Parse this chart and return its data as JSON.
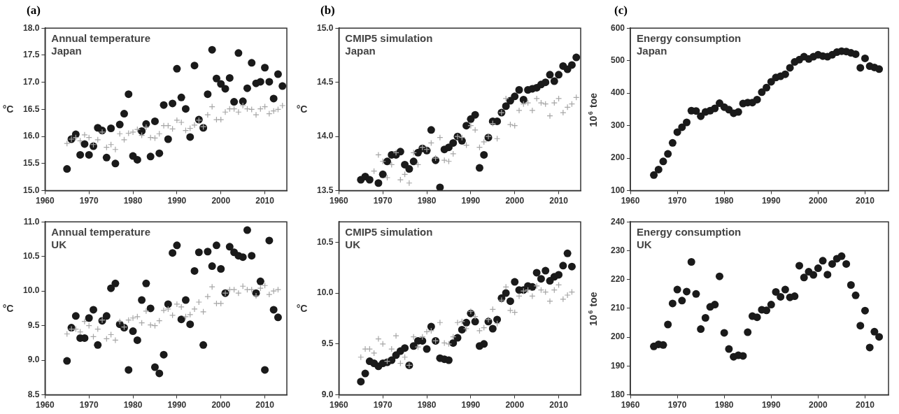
{
  "chart_data": [
    {
      "type": "scatter",
      "title": "Annual temperature",
      "subtitle": "Japan",
      "ylabel": "°C",
      "annotations": [
        "(a)"
      ],
      "x": [
        1965,
        1966,
        1967,
        1968,
        1969,
        1970,
        1971,
        1972,
        1973,
        1974,
        1975,
        1976,
        1977,
        1978,
        1979,
        1980,
        1981,
        1982,
        1983,
        1984,
        1985,
        1986,
        1987,
        1988,
        1989,
        1990,
        1991,
        1992,
        1993,
        1994,
        1995,
        1996,
        1997,
        1998,
        1999,
        2000,
        2001,
        2002,
        2003,
        2004,
        2005,
        2006,
        2007,
        2008,
        2009,
        2010,
        2011,
        2012,
        2013,
        2014
      ],
      "series": [
        {
          "color": "#1a1a1a",
          "marker": "circle",
          "values": [
            15.4,
            15.95,
            16.04,
            15.66,
            15.86,
            15.66,
            15.82,
            16.16,
            16.11,
            15.61,
            16.15,
            15.5,
            16.22,
            16.42,
            16.78,
            15.64,
            15.57,
            16.1,
            16.23,
            15.63,
            16.28,
            15.69,
            16.58,
            15.95,
            16.61,
            17.25,
            16.72,
            16.51,
            15.99,
            17.31,
            16.31,
            16.16,
            16.78,
            17.6,
            17.07,
            16.97,
            16.88,
            17.08,
            16.64,
            17.54,
            16.65,
            16.89,
            17.36,
            16.98,
            17.01,
            17.27,
            17.01,
            16.7,
            17.15,
            16.93
          ]
        },
        {
          "color": "#a6a6a6",
          "marker": "cross",
          "values": [
            15.87,
            15.95,
            15.98,
            15.92,
            16.03,
            15.98,
            15.85,
            15.94,
            16.08,
            15.8,
            15.85,
            15.76,
            16.05,
            15.94,
            16.06,
            16.08,
            16.13,
            16.02,
            16.17,
            15.98,
            15.97,
            16.05,
            16.2,
            16.2,
            16.14,
            16.3,
            16.26,
            16.11,
            16.15,
            16.21,
            16.3,
            16.18,
            16.4,
            16.55,
            16.31,
            16.31,
            16.45,
            16.51,
            16.51,
            16.45,
            16.57,
            16.51,
            16.5,
            16.4,
            16.51,
            16.55,
            16.42,
            16.47,
            16.5,
            16.57
          ]
        }
      ],
      "xlim": [
        1960,
        2015
      ],
      "xticks": [
        1960,
        1970,
        1980,
        1990,
        2000,
        2010
      ],
      "ylim": [
        15,
        18
      ],
      "yticks": [
        {
          "value": 15,
          "label": "15.0"
        },
        {
          "value": 15.5,
          "label": "15.5"
        },
        {
          "value": 16,
          "label": "16.0"
        },
        {
          "value": 16.5,
          "label": "16.5"
        },
        {
          "value": 17,
          "label": "17.0"
        },
        {
          "value": 17.5,
          "label": "17.5"
        },
        {
          "value": 18,
          "label": "18.0"
        }
      ]
    },
    {
      "type": "scatter",
      "title": "CMIP5 simulation",
      "subtitle": "Japan",
      "ylabel": "°C",
      "annotations": [
        "(b)"
      ],
      "x": [
        1965,
        1966,
        1967,
        1968,
        1969,
        1970,
        1971,
        1972,
        1973,
        1974,
        1975,
        1976,
        1977,
        1978,
        1979,
        1980,
        1981,
        1982,
        1983,
        1984,
        1985,
        1986,
        1987,
        1988,
        1989,
        1990,
        1991,
        1992,
        1993,
        1994,
        1995,
        1996,
        1997,
        1998,
        1999,
        2000,
        2001,
        2002,
        2003,
        2004,
        2005,
        2006,
        2007,
        2008,
        2009,
        2010,
        2011,
        2012,
        2013,
        2014
      ],
      "series": [
        {
          "color": "#1a1a1a",
          "marker": "circle",
          "values": [
            13.6,
            13.63,
            13.6,
            null,
            13.57,
            13.65,
            13.77,
            13.83,
            13.83,
            13.86,
            13.74,
            13.7,
            13.77,
            13.85,
            13.89,
            13.87,
            14.06,
            13.78,
            13.53,
            13.88,
            13.9,
            13.94,
            14.0,
            13.96,
            14.1,
            14.16,
            14.2,
            13.71,
            13.83,
            13.99,
            14.14,
            14.14,
            14.22,
            14.28,
            14.33,
            14.37,
            14.43,
            14.34,
            14.43,
            14.44,
            14.45,
            14.48,
            14.5,
            14.57,
            14.51,
            14.57,
            14.65,
            14.62,
            14.66,
            14.73
          ]
        },
        {
          "color": "#a6a6a6",
          "marker": "cross",
          "values": [
            null,
            null,
            null,
            13.68,
            13.83,
            13.77,
            13.62,
            13.74,
            13.85,
            13.6,
            13.65,
            13.57,
            13.85,
            13.74,
            13.9,
            13.88,
            13.94,
            13.8,
            13.99,
            13.78,
            13.77,
            13.84,
            14.0,
            13.99,
            13.92,
            14.1,
            14.06,
            13.9,
            13.95,
            14.0,
            14.12,
            13.98,
            14.22,
            14.35,
            14.11,
            14.1,
            14.24,
            14.3,
            14.31,
            14.24,
            14.35,
            14.31,
            14.3,
            14.19,
            14.31,
            14.35,
            14.22,
            14.27,
            14.3,
            14.36
          ]
        }
      ],
      "xlim": [
        1960,
        2015
      ],
      "xticks": [
        1960,
        1970,
        1980,
        1990,
        2000,
        2010
      ],
      "ylim": [
        13.5,
        15
      ],
      "yticks": [
        {
          "value": 13.5,
          "label": "13.5"
        },
        {
          "value": 14,
          "label": "14.0"
        },
        {
          "value": 14.5,
          "label": "14.5"
        },
        {
          "value": 15,
          "label": "15.0"
        }
      ]
    },
    {
      "type": "scatter",
      "title": "Energy consumption",
      "subtitle": "Japan",
      "ylabel": "10$^{6}$ toe",
      "annotations": [
        "(c)"
      ],
      "x": [
        1965,
        1966,
        1967,
        1968,
        1969,
        1970,
        1971,
        1972,
        1973,
        1974,
        1975,
        1976,
        1977,
        1978,
        1979,
        1980,
        1981,
        1982,
        1983,
        1984,
        1985,
        1986,
        1987,
        1988,
        1989,
        1990,
        1991,
        1992,
        1993,
        1994,
        1995,
        1996,
        1997,
        1998,
        1999,
        2000,
        2001,
        2002,
        2003,
        2004,
        2005,
        2006,
        2007,
        2008,
        2009,
        2010,
        2011,
        2012,
        2013
      ],
      "series": [
        {
          "color": "#1a1a1a",
          "marker": "circle",
          "values": [
            148,
            165,
            190,
            213,
            247,
            280,
            295,
            310,
            346,
            345,
            329,
            342,
            346,
            353,
            369,
            357,
            349,
            338,
            342,
            368,
            371,
            371,
            380,
            403,
            417,
            435,
            448,
            452,
            458,
            478,
            496,
            503,
            512,
            505,
            512,
            518,
            514,
            512,
            518,
            526,
            529,
            528,
            524,
            520,
            478,
            507,
            483,
            479,
            474
          ]
        }
      ],
      "xlim": [
        1960,
        2015
      ],
      "xticks": [
        1960,
        1970,
        1980,
        1990,
        2000,
        2010
      ],
      "ylim": [
        100,
        600
      ],
      "yticks": [
        100,
        200,
        300,
        400,
        500,
        600
      ]
    },
    {
      "type": "scatter",
      "title": "Annual temperature",
      "subtitle": "UK",
      "ylabel": "°C",
      "x": [
        1965,
        1966,
        1967,
        1968,
        1969,
        1970,
        1971,
        1972,
        1973,
        1974,
        1975,
        1976,
        1977,
        1978,
        1979,
        1980,
        1981,
        1982,
        1983,
        1984,
        1985,
        1986,
        1987,
        1988,
        1989,
        1990,
        1991,
        1992,
        1993,
        1994,
        1995,
        1996,
        1997,
        1998,
        1999,
        2000,
        2001,
        2002,
        2003,
        2004,
        2005,
        2006,
        2007,
        2008,
        2009,
        2010,
        2011,
        2012,
        2013
      ],
      "series": [
        {
          "color": "#1a1a1a",
          "marker": "circle",
          "values": [
            8.99,
            9.47,
            9.64,
            9.32,
            9.32,
            9.61,
            9.73,
            9.22,
            9.57,
            9.64,
            10.04,
            10.11,
            9.52,
            9.47,
            8.86,
            9.42,
            9.29,
            9.87,
            10.11,
            9.75,
            8.9,
            8.81,
            9.08,
            9.81,
            10.55,
            10.66,
            9.59,
            9.87,
            9.52,
            10.29,
            10.56,
            9.22,
            10.57,
            10.36,
            10.66,
            10.32,
            9.97,
            10.64,
            10.56,
            10.51,
            10.49,
            10.88,
            10.51,
            9.97,
            10.14,
            8.86,
            10.73,
            9.73,
            9.62
          ]
        },
        {
          "color": "#a6a6a6",
          "marker": "cross",
          "values": [
            9.38,
            9.45,
            9.45,
            9.41,
            9.56,
            9.5,
            9.34,
            9.45,
            9.58,
            9.31,
            9.37,
            9.29,
            9.56,
            9.48,
            9.58,
            9.61,
            9.63,
            9.54,
            9.71,
            9.51,
            9.5,
            9.57,
            9.72,
            9.74,
            9.65,
            9.81,
            9.77,
            9.63,
            9.66,
            9.74,
            9.84,
            9.7,
            9.92,
            10.06,
            9.82,
            9.82,
            9.97,
            10.02,
            10.02,
            9.97,
            10.07,
            10.02,
            10.02,
            9.93,
            10.04,
            10.08,
            9.95,
            10.0,
            10.02
          ]
        }
      ],
      "xlim": [
        1960,
        2015
      ],
      "xticks": [
        1960,
        1970,
        1980,
        1990,
        2000,
        2010
      ],
      "ylim": [
        8.5,
        11
      ],
      "yticks": [
        {
          "value": 8.5,
          "label": "8.5"
        },
        {
          "value": 9,
          "label": "9.0"
        },
        {
          "value": 9.5,
          "label": "9.5"
        },
        {
          "value": 10,
          "label": "10.0"
        },
        {
          "value": 10.5,
          "label": "10.5"
        },
        {
          "value": 11,
          "label": "11.0"
        }
      ]
    },
    {
      "type": "scatter",
      "title": "CMIP5 simulation",
      "subtitle": "UK",
      "ylabel": "°C",
      "x": [
        1965,
        1966,
        1967,
        1968,
        1969,
        1970,
        1971,
        1972,
        1973,
        1974,
        1975,
        1976,
        1977,
        1978,
        1979,
        1980,
        1981,
        1982,
        1983,
        1984,
        1985,
        1986,
        1987,
        1988,
        1989,
        1990,
        1991,
        1992,
        1993,
        1994,
        1995,
        1996,
        1997,
        1998,
        1999,
        2000,
        2001,
        2002,
        2003,
        2004,
        2005,
        2006,
        2007,
        2008,
        2009,
        2010,
        2011,
        2012,
        2013
      ],
      "series": [
        {
          "color": "#1a1a1a",
          "marker": "circle",
          "values": [
            9.13,
            9.21,
            9.33,
            9.31,
            9.28,
            9.31,
            9.32,
            9.34,
            9.39,
            9.43,
            9.46,
            9.29,
            9.48,
            9.53,
            9.53,
            9.45,
            9.67,
            9.53,
            9.36,
            9.35,
            9.34,
            9.51,
            9.56,
            9.64,
            9.71,
            9.8,
            9.72,
            9.48,
            9.5,
            9.72,
            9.65,
            9.74,
            9.95,
            10.0,
            9.92,
            10.11,
            10.03,
            10.03,
            10.07,
            10.06,
            10.2,
            10.14,
            10.22,
            10.12,
            10.16,
            10.18,
            10.27,
            10.39,
            10.26
          ]
        },
        {
          "color": "#a6a6a6",
          "marker": "cross",
          "values": [
            9.37,
            9.45,
            9.45,
            9.41,
            9.55,
            9.5,
            9.33,
            9.45,
            9.58,
            9.31,
            9.37,
            9.29,
            9.57,
            9.47,
            9.57,
            9.62,
            9.63,
            9.53,
            9.71,
            9.51,
            9.5,
            9.57,
            9.71,
            9.72,
            9.65,
            9.82,
            9.77,
            9.63,
            9.66,
            9.74,
            9.84,
            9.7,
            9.93,
            10.06,
            9.83,
            9.81,
            9.97,
            10.02,
            10.03,
            9.97,
            10.07,
            10.03,
            10.01,
            9.92,
            10.03,
            10.08,
            9.94,
            9.98,
            10.01
          ]
        }
      ],
      "xlim": [
        1960,
        2015
      ],
      "xticks": [
        1960,
        1970,
        1980,
        1990,
        2000,
        2010
      ],
      "ylim": [
        9,
        10.7
      ],
      "yticks": [
        {
          "value": 9,
          "label": "9.0"
        },
        {
          "value": 9.5,
          "label": "9.5"
        },
        {
          "value": 10,
          "label": "10.0"
        },
        {
          "value": 10.5,
          "label": "10.5"
        }
      ]
    },
    {
      "type": "scatter",
      "title": "Energy consumption",
      "subtitle": "UK",
      "ylabel": "10$^{6}$ toe",
      "x": [
        1965,
        1966,
        1967,
        1968,
        1969,
        1970,
        1971,
        1972,
        1973,
        1974,
        1975,
        1976,
        1977,
        1978,
        1979,
        1980,
        1981,
        1982,
        1983,
        1984,
        1985,
        1986,
        1987,
        1988,
        1989,
        1990,
        1991,
        1992,
        1993,
        1994,
        1995,
        1996,
        1997,
        1998,
        1999,
        2000,
        2001,
        2002,
        2003,
        2004,
        2005,
        2006,
        2007,
        2008,
        2009,
        2010,
        2011,
        2012,
        2013
      ],
      "series": [
        {
          "color": "#1a1a1a",
          "marker": "circle",
          "values": [
            196.8,
            197.5,
            197.3,
            204.4,
            211.7,
            216.5,
            212.7,
            215.8,
            226.1,
            215.0,
            202.8,
            206.7,
            210.5,
            211.3,
            221.1,
            201.5,
            195.9,
            193.2,
            193.7,
            193.5,
            201.7,
            207.3,
            206.9,
            209.5,
            209.3,
            211.3,
            215.7,
            214.0,
            216.5,
            213.8,
            214.2,
            224.8,
            220.7,
            222.7,
            221.6,
            223.9,
            226.5,
            221.7,
            225.4,
            227.2,
            228.1,
            225.4,
            218.1,
            214.5,
            204.0,
            209.2,
            196.4,
            201.9,
            200.1
          ]
        }
      ],
      "xlim": [
        1960,
        2015
      ],
      "xticks": [
        1960,
        1970,
        1980,
        1990,
        2000,
        2010
      ],
      "ylim": [
        180,
        240
      ],
      "yticks": [
        180,
        190,
        200,
        210,
        220,
        230,
        240
      ]
    }
  ]
}
